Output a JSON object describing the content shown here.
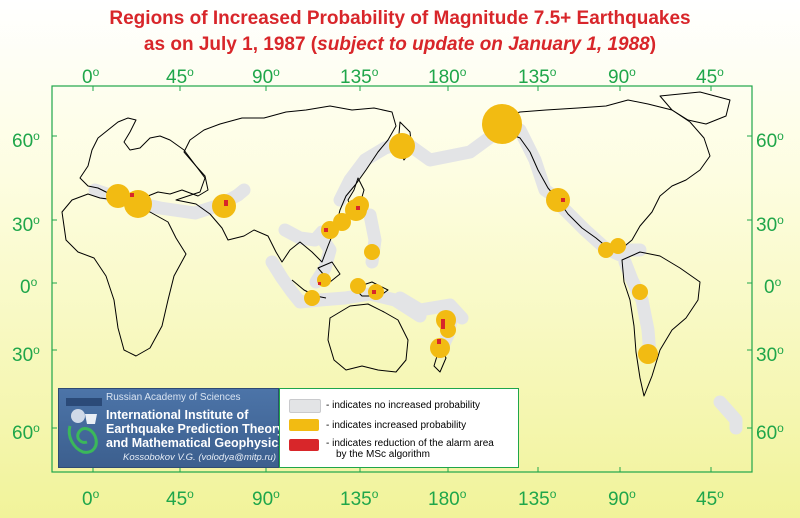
{
  "title": {
    "line1": "Regions of Increased Probability of Magnitude 7.5+ Earthquakes",
    "line2_prefix": "as on July 1, 1987 (",
    "line2_italic": "subject to update on January 1, 1988",
    "line2_suffix": ")"
  },
  "longitude_ticks": [
    "0",
    "45",
    "90",
    "135",
    "180",
    "135",
    "90",
    "45"
  ],
  "latitude_ticks": [
    "60",
    "30",
    "0",
    "30",
    "60"
  ],
  "degree_mark": "o",
  "logo": {
    "org": "Russian Academy of Sciences",
    "institute_line1": "International Institute of",
    "institute_line2": "Earthquake Prediction Theory",
    "institute_line3": "and Mathematical Geophysics",
    "author": "Kossobokov V.G. (volodya@mitp.ru)"
  },
  "legend": {
    "items": [
      {
        "label": "- indicates no increased probability",
        "color": "#e3e4e6"
      },
      {
        "label": "- indicates increased probability",
        "color": "#f2bb12"
      },
      {
        "label": "- indicates reduction of the alarm area",
        "label2": "by the MSc algorithm",
        "color": "#d8262a"
      }
    ]
  },
  "colors": {
    "title": "#d8262a",
    "ticks": "#1fa64a",
    "no_increase": "#e3e4e6",
    "increase": "#f2bb12",
    "reduction": "#d8262a"
  }
}
